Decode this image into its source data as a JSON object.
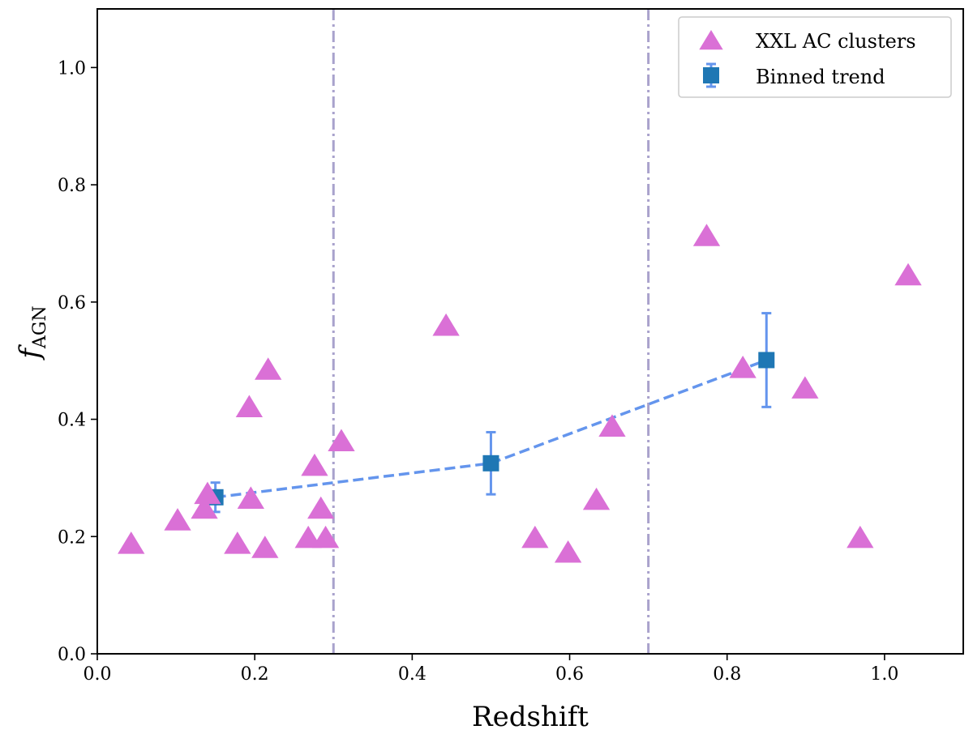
{
  "chart_data": {
    "type": "scatter",
    "xlabel": "Redshift",
    "ylabel_main": "f",
    "ylabel_sub": "AGN",
    "xlim": [
      0.0,
      1.1
    ],
    "ylim": [
      0.0,
      1.1
    ],
    "xticks": [
      0.0,
      0.2,
      0.4,
      0.6,
      0.8,
      1.0
    ],
    "xtick_labels": [
      "0.0",
      "0.2",
      "0.4",
      "0.6",
      "0.8",
      "1.0"
    ],
    "yticks": [
      0.0,
      0.2,
      0.4,
      0.6,
      0.8,
      1.0
    ],
    "ytick_labels": [
      "0.0",
      "0.2",
      "0.4",
      "0.6",
      "0.8",
      "1.0"
    ],
    "grid": false,
    "legend_position": "top-right",
    "vertical_lines": [
      0.3,
      0.7
    ],
    "series": [
      {
        "name": "XXL AC clusters",
        "marker": "triangle",
        "color": "#da70d6",
        "x": [
          0.043,
          0.102,
          0.136,
          0.14,
          0.178,
          0.193,
          0.195,
          0.213,
          0.217,
          0.268,
          0.276,
          0.284,
          0.29,
          0.31,
          0.443,
          0.556,
          0.598,
          0.634,
          0.654,
          0.774,
          0.82,
          0.899,
          0.969,
          1.03
        ],
        "y": [
          0.185,
          0.225,
          0.245,
          0.27,
          0.185,
          0.418,
          0.262,
          0.178,
          0.482,
          0.195,
          0.318,
          0.245,
          0.195,
          0.36,
          0.557,
          0.195,
          0.17,
          0.26,
          0.385,
          0.71,
          0.485,
          0.45,
          0.195,
          0.643
        ]
      },
      {
        "name": "Binned trend",
        "marker": "square",
        "color": "#1f77b4",
        "line_color": "#6495ed",
        "x": [
          0.15,
          0.5,
          0.85
        ],
        "y": [
          0.267,
          0.325,
          0.501
        ],
        "yerr": [
          0.025,
          0.053,
          0.08
        ]
      }
    ]
  }
}
